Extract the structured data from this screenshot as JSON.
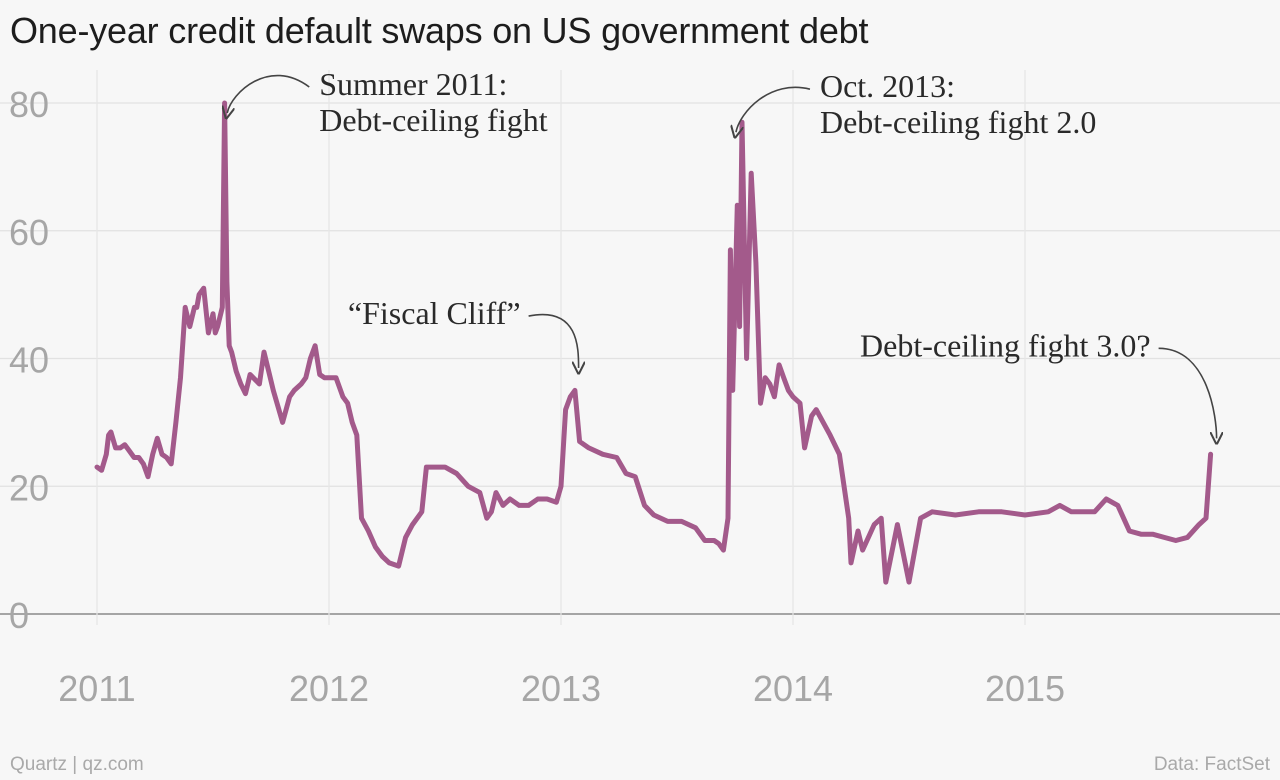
{
  "chart_data": {
    "type": "line",
    "title": "One-year credit default swaps on US government debt",
    "xlabel": "",
    "ylabel": "",
    "xlim": [
      2011,
      2016.0
    ],
    "ylim": [
      0,
      80
    ],
    "x_ticks": [
      "2011",
      "2012",
      "2013",
      "2014",
      "2015"
    ],
    "y_ticks": [
      "0",
      "20",
      "40",
      "60",
      "80"
    ],
    "grid": true,
    "legend": "none",
    "series": [
      {
        "color": "#a35a8b",
        "x": [
          2011.0,
          2011.02,
          2011.04,
          2011.05,
          2011.06,
          2011.08,
          2011.1,
          2011.12,
          2011.14,
          2011.16,
          2011.18,
          2011.2,
          2011.22,
          2011.24,
          2011.26,
          2011.28,
          2011.3,
          2011.32,
          2011.34,
          2011.36,
          2011.38,
          2011.4,
          2011.42,
          2011.43,
          2011.44,
          2011.46,
          2011.48,
          2011.5,
          2011.51,
          2011.52,
          2011.54,
          2011.55,
          2011.56,
          2011.57,
          2011.58,
          2011.6,
          2011.62,
          2011.64,
          2011.66,
          2011.7,
          2011.72,
          2011.74,
          2011.76,
          2011.8,
          2011.83,
          2011.85,
          2011.88,
          2011.9,
          2011.92,
          2011.94,
          2011.96,
          2011.98,
          2012.0,
          2012.03,
          2012.06,
          2012.08,
          2012.1,
          2012.12,
          2012.14,
          2012.17,
          2012.2,
          2012.23,
          2012.26,
          2012.3,
          2012.33,
          2012.36,
          2012.4,
          2012.42,
          2012.46,
          2012.5,
          2012.55,
          2012.6,
          2012.65,
          2012.68,
          2012.7,
          2012.72,
          2012.75,
          2012.78,
          2012.82,
          2012.86,
          2012.9,
          2012.94,
          2012.98,
          2013.0,
          2013.02,
          2013.04,
          2013.06,
          2013.08,
          2013.12,
          2013.18,
          2013.24,
          2013.28,
          2013.32,
          2013.36,
          2013.4,
          2013.46,
          2013.52,
          2013.58,
          2013.62,
          2013.66,
          2013.68,
          2013.7,
          2013.72,
          2013.73,
          2013.74,
          2013.76,
          2013.77,
          2013.78,
          2013.8,
          2013.82,
          2013.84,
          2013.86,
          2013.88,
          2013.9,
          2013.92,
          2013.94,
          2013.96,
          2013.98,
          2014.0,
          2014.03,
          2014.05,
          2014.08,
          2014.1,
          2014.13,
          2014.16,
          2014.2,
          2014.24,
          2014.25,
          2014.28,
          2014.3,
          2014.35,
          2014.38,
          2014.4,
          2014.45,
          2014.5,
          2014.55,
          2014.6,
          2014.7,
          2014.8,
          2014.9,
          2015.0,
          2015.1,
          2015.15,
          2015.2,
          2015.3,
          2015.35,
          2015.4,
          2015.45,
          2015.5,
          2015.55,
          2015.6,
          2015.65,
          2015.7,
          2015.75,
          2015.78,
          2015.8
        ],
        "y": [
          23,
          22.5,
          25,
          28,
          28.5,
          26,
          26,
          26.5,
          25.5,
          24.5,
          24.5,
          23.5,
          21.5,
          25,
          27.5,
          25,
          24.5,
          23.5,
          30,
          37,
          48,
          45,
          48,
          48,
          50,
          51,
          44,
          47,
          44,
          45,
          48,
          80,
          52,
          42,
          41,
          38,
          36,
          34.5,
          37.5,
          36,
          41,
          38,
          35,
          30,
          34,
          35,
          36,
          37,
          40,
          42,
          37.5,
          37,
          37,
          37,
          34,
          33,
          30,
          28,
          15,
          13,
          10.5,
          9,
          8,
          7.5,
          12,
          14,
          16,
          23,
          23,
          23,
          22,
          20,
          19,
          15,
          16,
          19,
          17,
          18,
          17,
          17,
          18,
          18,
          17.5,
          20,
          32,
          34,
          35,
          27,
          26,
          25,
          24.5,
          22,
          21.5,
          17,
          15.5,
          14.5,
          14.5,
          13.5,
          11.5,
          11.5,
          11,
          10,
          15,
          57,
          35,
          64,
          45,
          77,
          40,
          69,
          55,
          33,
          37,
          36,
          34,
          39,
          37,
          35,
          34,
          33,
          26,
          31,
          32,
          30,
          28,
          25,
          15,
          8,
          13,
          10,
          14,
          15,
          5,
          14,
          5,
          15,
          16,
          15.5,
          16,
          16,
          15.5,
          16,
          17,
          16,
          16,
          18,
          17,
          13,
          12.5,
          12.5,
          12,
          11.5,
          12,
          14,
          15,
          25
        ]
      }
    ],
    "annotations": [
      {
        "text_lines": [
          "Summer 2011:",
          "Debt-ceiling fight"
        ],
        "x": 2011.57,
        "y": 80
      },
      {
        "text_lines": [
          "Oct. 2013:",
          "Debt-ceiling fight 2.0"
        ],
        "x": 2013.78,
        "y": 77
      },
      {
        "text_lines": [
          "“Fiscal Cliff”"
        ],
        "x": 2013.05,
        "y": 36
      },
      {
        "text_lines": [
          "Debt-ceiling fight 3.0?"
        ],
        "x": 2015.8,
        "y": 25
      }
    ]
  },
  "footer": {
    "source_left": "Quartz | qz.com",
    "source_right": "Data: FactSet"
  }
}
